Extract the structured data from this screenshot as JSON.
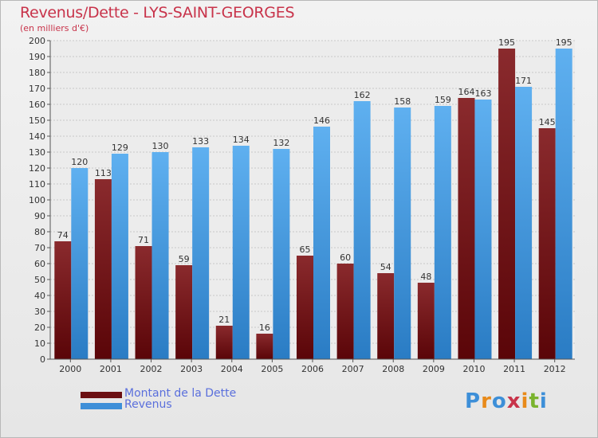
{
  "chart_data": {
    "type": "bar",
    "title": "Revenus/Dette - LYS-SAINT-GEORGES",
    "subtitle": "(en milliers d'€)",
    "categories": [
      "2000",
      "2001",
      "2002",
      "2003",
      "2004",
      "2005",
      "2006",
      "2007",
      "2008",
      "2009",
      "2010",
      "2011",
      "2012"
    ],
    "series": [
      {
        "name": "Montant de la Dette",
        "color": "#6b0f12",
        "values": [
          74,
          113,
          71,
          59,
          21,
          16,
          65,
          60,
          54,
          48,
          164,
          195,
          145
        ]
      },
      {
        "name": "Revenus",
        "color": "#3d8fd8",
        "values": [
          120,
          129,
          130,
          133,
          134,
          132,
          146,
          162,
          158,
          159,
          163,
          171,
          195
        ]
      }
    ],
    "ylim": [
      0,
      200
    ],
    "yticks": [
      0,
      10,
      20,
      30,
      40,
      50,
      60,
      70,
      80,
      90,
      100,
      110,
      120,
      130,
      140,
      150,
      160,
      170,
      180,
      190,
      200
    ],
    "grid": true,
    "legend_position": "bottom-left"
  },
  "logo": {
    "letters": [
      "P",
      "r",
      "o",
      "x",
      "i",
      "t",
      "i"
    ],
    "colors": [
      "#3d8fd8",
      "#e88a1a",
      "#3d8fd8",
      "#c8334a",
      "#e88a1a",
      "#7ab32e",
      "#3d8fd8"
    ]
  }
}
